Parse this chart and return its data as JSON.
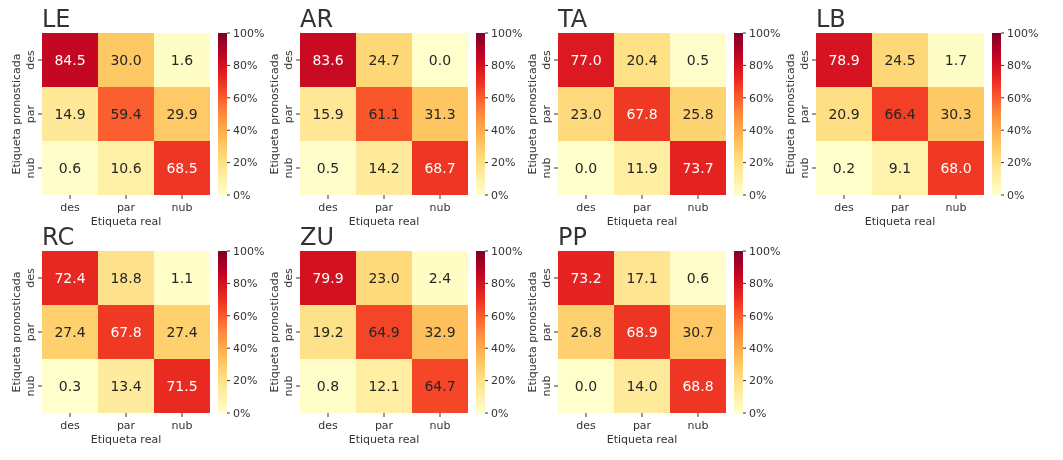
{
  "chart_data": [
    {
      "type": "heatmap",
      "title": "LE",
      "xlabel": "Etiqueta real",
      "ylabel": "Etiqueta pronosticada",
      "categories": [
        "des",
        "par",
        "nub"
      ],
      "y_categories": [
        "des",
        "par",
        "nub"
      ],
      "cells": [
        [
          84.5,
          30.0,
          1.6
        ],
        [
          14.9,
          59.4,
          29.9
        ],
        [
          0.6,
          10.6,
          68.5
        ]
      ],
      "cell_labels": [
        [
          "84.5",
          "30.0",
          "1.6"
        ],
        [
          "14.9",
          "59.4",
          "29.9"
        ],
        [
          "0.6",
          "10.6",
          "68.5"
        ]
      ],
      "clim": [
        0,
        100
      ],
      "cticks": [
        {
          "value": 0,
          "label": "0%"
        },
        {
          "value": 20,
          "label": "20%"
        },
        {
          "value": 40,
          "label": "40%"
        },
        {
          "value": 60,
          "label": "60%"
        },
        {
          "value": 80,
          "label": "80%"
        },
        {
          "value": 100,
          "label": "100%"
        }
      ],
      "data_labels": true
    },
    {
      "type": "heatmap",
      "title": "AR",
      "xlabel": "Etiqueta real",
      "ylabel": "Etiqueta pronosticada",
      "categories": [
        "des",
        "par",
        "nub"
      ],
      "y_categories": [
        "des",
        "par",
        "nub"
      ],
      "cells": [
        [
          83.6,
          24.7,
          0.0
        ],
        [
          15.9,
          61.1,
          31.3
        ],
        [
          0.5,
          14.2,
          68.7
        ]
      ],
      "cell_labels": [
        [
          "83.6",
          "24.7",
          "0.0"
        ],
        [
          "15.9",
          "61.1",
          "31.3"
        ],
        [
          "0.5",
          "14.2",
          "68.7"
        ]
      ],
      "clim": [
        0,
        100
      ],
      "cticks": [
        {
          "value": 0,
          "label": "0%"
        },
        {
          "value": 20,
          "label": "20%"
        },
        {
          "value": 40,
          "label": "40%"
        },
        {
          "value": 60,
          "label": "60%"
        },
        {
          "value": 80,
          "label": "80%"
        },
        {
          "value": 100,
          "label": "100%"
        }
      ],
      "data_labels": true
    },
    {
      "type": "heatmap",
      "title": "TA",
      "xlabel": "Etiqueta real",
      "ylabel": "Etiqueta pronosticada",
      "categories": [
        "des",
        "par",
        "nub"
      ],
      "y_categories": [
        "des",
        "par",
        "nub"
      ],
      "cells": [
        [
          77.0,
          20.4,
          0.5
        ],
        [
          23.0,
          67.8,
          25.8
        ],
        [
          0.0,
          11.9,
          73.7
        ]
      ],
      "cell_labels": [
        [
          "77.0",
          "20.4",
          "0.5"
        ],
        [
          "23.0",
          "67.8",
          "25.8"
        ],
        [
          "0.0",
          "11.9",
          "73.7"
        ]
      ],
      "clim": [
        0,
        100
      ],
      "cticks": [
        {
          "value": 0,
          "label": "0%"
        },
        {
          "value": 20,
          "label": "20%"
        },
        {
          "value": 40,
          "label": "40%"
        },
        {
          "value": 60,
          "label": "60%"
        },
        {
          "value": 80,
          "label": "80%"
        },
        {
          "value": 100,
          "label": "100%"
        }
      ],
      "data_labels": true
    },
    {
      "type": "heatmap",
      "title": "LB",
      "xlabel": "Etiqueta real",
      "ylabel": "Etiqueta pronosticada",
      "categories": [
        "des",
        "par",
        "nub"
      ],
      "y_categories": [
        "des",
        "par",
        "nub"
      ],
      "cells": [
        [
          78.9,
          24.5,
          1.7
        ],
        [
          20.9,
          66.4,
          30.3
        ],
        [
          0.2,
          9.1,
          68.0
        ]
      ],
      "cell_labels": [
        [
          "78.9",
          "24.5",
          "1.7"
        ],
        [
          "20.9",
          "66.4",
          "30.3"
        ],
        [
          "0.2",
          "9.1",
          "68.0"
        ]
      ],
      "clim": [
        0,
        100
      ],
      "cticks": [
        {
          "value": 0,
          "label": "0%"
        },
        {
          "value": 20,
          "label": "20%"
        },
        {
          "value": 40,
          "label": "40%"
        },
        {
          "value": 60,
          "label": "60%"
        },
        {
          "value": 80,
          "label": "80%"
        },
        {
          "value": 100,
          "label": "100%"
        }
      ],
      "data_labels": true
    },
    {
      "type": "heatmap",
      "title": "RC",
      "xlabel": "Etiqueta real",
      "ylabel": "Etiqueta pronosticada",
      "categories": [
        "des",
        "par",
        "nub"
      ],
      "y_categories": [
        "des",
        "par",
        "nub"
      ],
      "cells": [
        [
          72.4,
          18.8,
          1.1
        ],
        [
          27.4,
          67.8,
          27.4
        ],
        [
          0.3,
          13.4,
          71.5
        ]
      ],
      "cell_labels": [
        [
          "72.4",
          "18.8",
          "1.1"
        ],
        [
          "27.4",
          "67.8",
          "27.4"
        ],
        [
          "0.3",
          "13.4",
          "71.5"
        ]
      ],
      "clim": [
        0,
        100
      ],
      "cticks": [
        {
          "value": 0,
          "label": "0%"
        },
        {
          "value": 20,
          "label": "20%"
        },
        {
          "value": 40,
          "label": "40%"
        },
        {
          "value": 60,
          "label": "60%"
        },
        {
          "value": 80,
          "label": "80%"
        },
        {
          "value": 100,
          "label": "100%"
        }
      ],
      "data_labels": true
    },
    {
      "type": "heatmap",
      "title": "ZU",
      "xlabel": "Etiqueta real",
      "ylabel": "Etiqueta pronosticada",
      "categories": [
        "des",
        "par",
        "nub"
      ],
      "y_categories": [
        "des",
        "par",
        "nub"
      ],
      "cells": [
        [
          79.9,
          23.0,
          2.4
        ],
        [
          19.2,
          64.9,
          32.9
        ],
        [
          0.8,
          12.1,
          64.7
        ]
      ],
      "cell_labels": [
        [
          "79.9",
          "23.0",
          "2.4"
        ],
        [
          "19.2",
          "64.9",
          "32.9"
        ],
        [
          "0.8",
          "12.1",
          "64.7"
        ]
      ],
      "clim": [
        0,
        100
      ],
      "cticks": [
        {
          "value": 0,
          "label": "0%"
        },
        {
          "value": 20,
          "label": "20%"
        },
        {
          "value": 40,
          "label": "40%"
        },
        {
          "value": 60,
          "label": "60%"
        },
        {
          "value": 80,
          "label": "80%"
        },
        {
          "value": 100,
          "label": "100%"
        }
      ],
      "data_labels": true
    },
    {
      "type": "heatmap",
      "title": "PP",
      "xlabel": "Etiqueta real",
      "ylabel": "Etiqueta pronosticada",
      "categories": [
        "des",
        "par",
        "nub"
      ],
      "y_categories": [
        "des",
        "par",
        "nub"
      ],
      "cells": [
        [
          73.2,
          17.1,
          0.6
        ],
        [
          26.8,
          68.9,
          30.7
        ],
        [
          0.0,
          14.0,
          68.8
        ]
      ],
      "cell_labels": [
        [
          "73.2",
          "17.1",
          "0.6"
        ],
        [
          "26.8",
          "68.9",
          "30.7"
        ],
        [
          "0.0",
          "14.0",
          "68.8"
        ]
      ],
      "clim": [
        0,
        100
      ],
      "cticks": [
        {
          "value": 0,
          "label": "0%"
        },
        {
          "value": 20,
          "label": "20%"
        },
        {
          "value": 40,
          "label": "40%"
        },
        {
          "value": 60,
          "label": "60%"
        },
        {
          "value": 80,
          "label": "80%"
        },
        {
          "value": 100,
          "label": "100%"
        }
      ],
      "data_labels": true
    }
  ]
}
